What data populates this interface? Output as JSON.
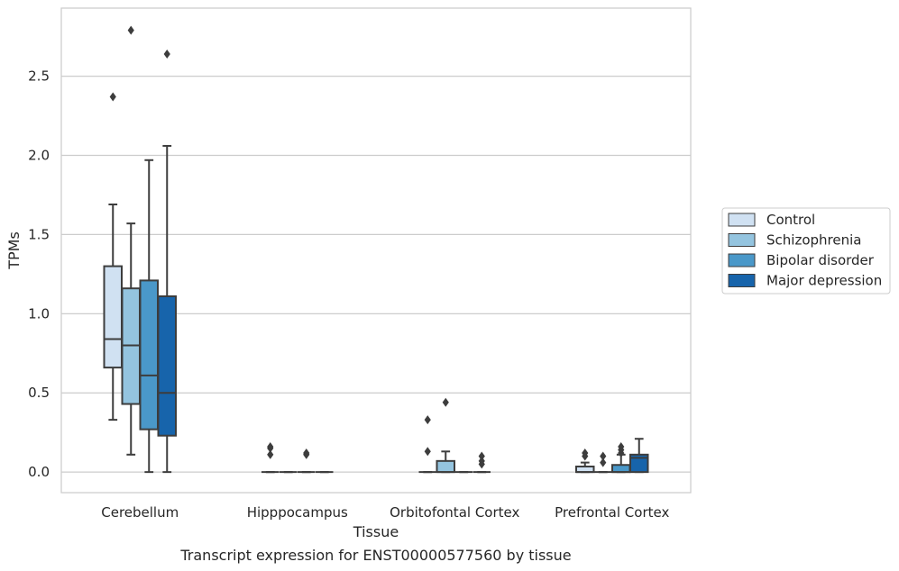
{
  "caption": "Transcript expression for ENST00000577560 by tissue",
  "colors": {
    "Control": "#d0e1f2",
    "Schizophrenia": "#94c4df",
    "Bipolar disorder": "#4a98c9",
    "Major depression": "#1764ab",
    "line": "#3d3d3d",
    "grid": "#cccccc"
  },
  "chart_data": {
    "type": "box",
    "xlabel": "Tissue",
    "ylabel": "TPMs",
    "ylim": [
      -0.13,
      2.93
    ],
    "yticks": [
      0.0,
      0.5,
      1.0,
      1.5,
      2.0,
      2.5
    ],
    "ytick_labels": [
      "0.0",
      "0.5",
      "1.0",
      "1.5",
      "2.0",
      "2.5"
    ],
    "grid": "horizontal",
    "legend_position": "right",
    "categories": [
      "Cerebellum",
      "Hipppocampus",
      "Orbitofontal Cortex",
      "Prefrontal Cortex"
    ],
    "series": [
      {
        "name": "Control",
        "boxes": [
          {
            "whislo": 0.33,
            "q1": 0.66,
            "med": 0.84,
            "q3": 1.3,
            "whishi": 1.69,
            "fliers": [
              2.37
            ]
          },
          {
            "whislo": 0.0,
            "q1": 0.0,
            "med": 0.0,
            "q3": 0.0,
            "whishi": 0.0,
            "fliers": [
              0.16,
              0.15,
              0.11
            ]
          },
          {
            "whislo": 0.0,
            "q1": 0.0,
            "med": 0.0,
            "q3": 0.0,
            "whishi": 0.0,
            "fliers": [
              0.33,
              0.13
            ]
          },
          {
            "whislo": 0.0,
            "q1": 0.0,
            "med": 0.0,
            "q3": 0.035,
            "whishi": 0.06,
            "fliers": [
              0.12,
              0.1
            ]
          }
        ]
      },
      {
        "name": "Schizophrenia",
        "boxes": [
          {
            "whislo": 0.11,
            "q1": 0.43,
            "med": 0.8,
            "q3": 1.16,
            "whishi": 1.57,
            "fliers": [
              2.79
            ]
          },
          {
            "whislo": 0.0,
            "q1": 0.0,
            "med": 0.0,
            "q3": 0.0,
            "whishi": 0.0,
            "fliers": []
          },
          {
            "whislo": 0.0,
            "q1": 0.0,
            "med": 0.0,
            "q3": 0.07,
            "whishi": 0.13,
            "fliers": [
              0.44
            ]
          },
          {
            "whislo": 0.0,
            "q1": 0.0,
            "med": 0.0,
            "q3": 0.0,
            "whishi": 0.0,
            "fliers": [
              0.1,
              0.06
            ]
          }
        ]
      },
      {
        "name": "Bipolar disorder",
        "boxes": [
          {
            "whislo": 0.0,
            "q1": 0.27,
            "med": 0.61,
            "q3": 1.21,
            "whishi": 1.97,
            "fliers": []
          },
          {
            "whislo": 0.0,
            "q1": 0.0,
            "med": 0.0,
            "q3": 0.0,
            "whishi": 0.0,
            "fliers": [
              0.12,
              0.11
            ]
          },
          {
            "whislo": 0.0,
            "q1": 0.0,
            "med": 0.0,
            "q3": 0.0,
            "whishi": 0.0,
            "fliers": []
          },
          {
            "whislo": 0.0,
            "q1": 0.0,
            "med": 0.0,
            "q3": 0.045,
            "whishi": 0.11,
            "fliers": [
              0.16,
              0.14,
              0.12
            ]
          }
        ]
      },
      {
        "name": "Major depression",
        "boxes": [
          {
            "whislo": 0.0,
            "q1": 0.23,
            "med": 0.5,
            "q3": 1.11,
            "whishi": 2.06,
            "fliers": [
              2.64
            ]
          },
          {
            "whislo": 0.0,
            "q1": 0.0,
            "med": 0.0,
            "q3": 0.0,
            "whishi": 0.0,
            "fliers": []
          },
          {
            "whislo": 0.0,
            "q1": 0.0,
            "med": 0.0,
            "q3": 0.0,
            "whishi": 0.0,
            "fliers": [
              0.1,
              0.07,
              0.05
            ]
          },
          {
            "whislo": 0.0,
            "q1": 0.0,
            "med": 0.09,
            "q3": 0.11,
            "whishi": 0.21,
            "fliers": []
          }
        ]
      }
    ]
  }
}
